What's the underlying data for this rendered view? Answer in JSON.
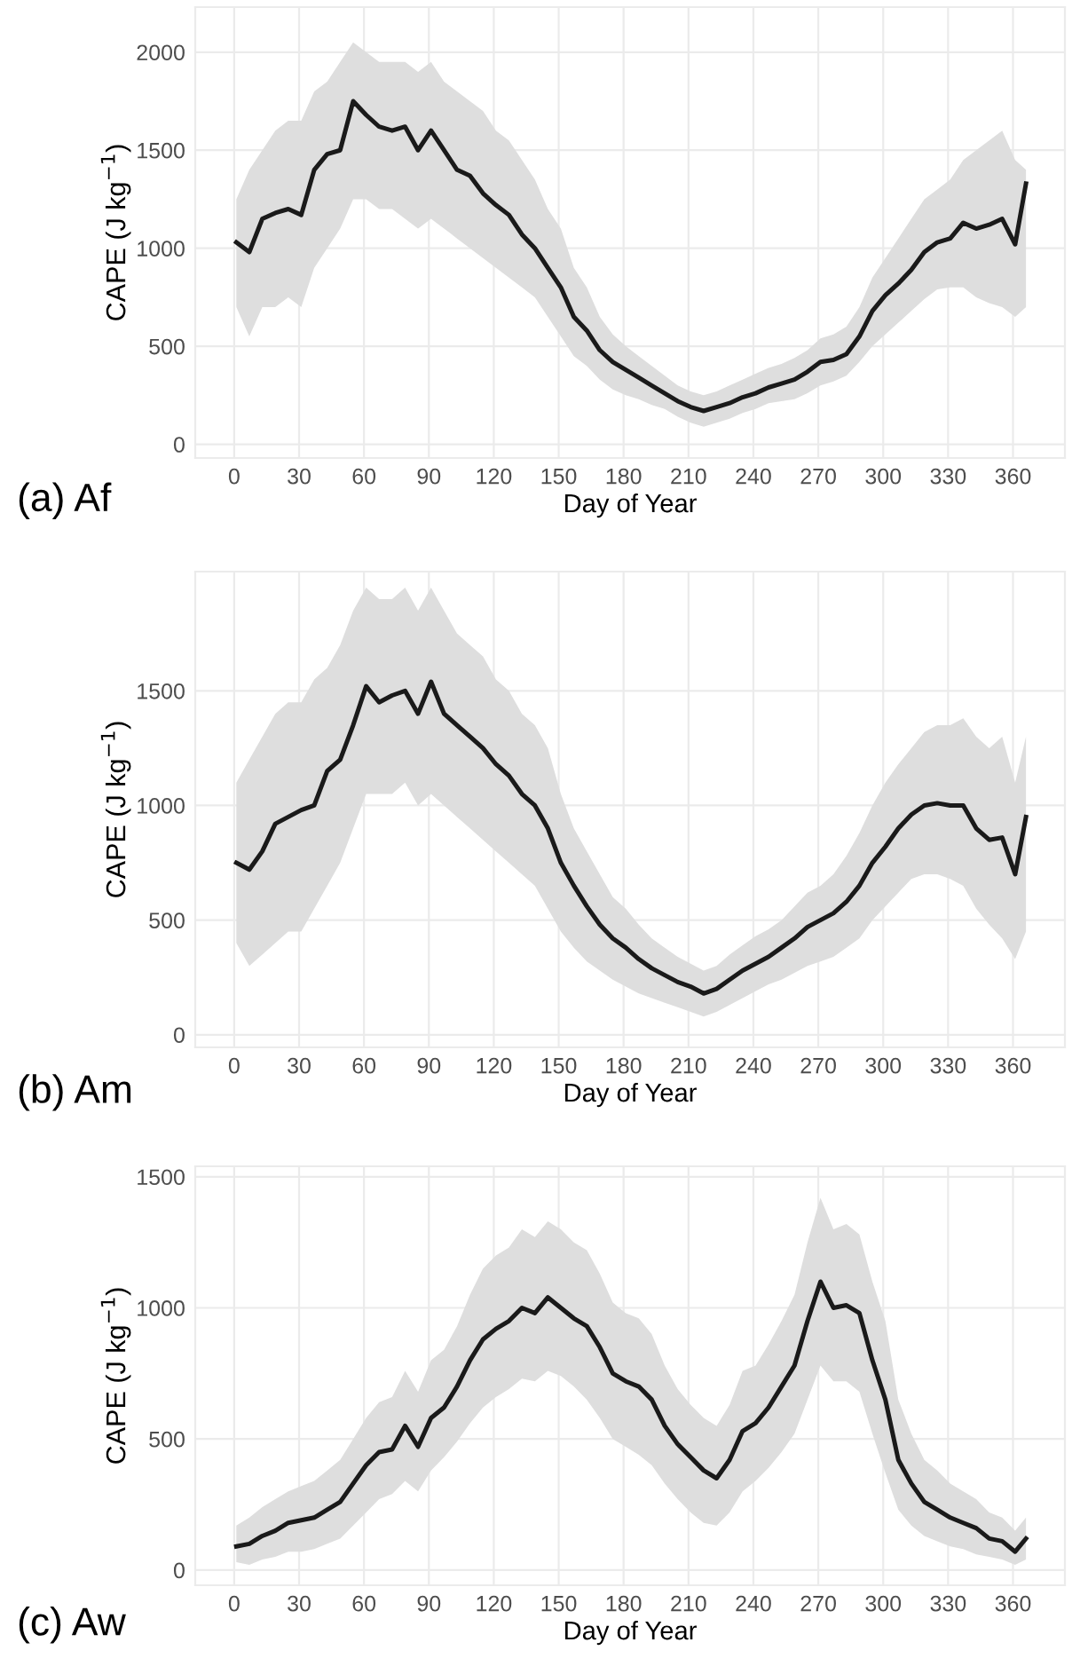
{
  "chart_data": [
    {
      "type": "line",
      "xlabel": "Day of Year",
      "ylabel": "CAPE (J kg$^{−1}$)",
      "annotations": [
        "(a) Af"
      ],
      "xlim": [
        -18,
        384
      ],
      "ylim": [
        -70,
        2230
      ],
      "xticks": [
        0,
        30,
        60,
        90,
        120,
        150,
        180,
        210,
        240,
        270,
        300,
        330,
        360
      ],
      "yticks": [
        0,
        500,
        1000,
        1500,
        2000
      ],
      "grid": true,
      "x": [
        1,
        7,
        13,
        19,
        25,
        31,
        37,
        43,
        49,
        55,
        61,
        67,
        73,
        79,
        85,
        91,
        97,
        103,
        109,
        115,
        121,
        127,
        133,
        139,
        145,
        151,
        157,
        163,
        169,
        175,
        181,
        187,
        193,
        199,
        205,
        211,
        217,
        223,
        229,
        235,
        241,
        247,
        253,
        259,
        265,
        271,
        277,
        283,
        289,
        295,
        301,
        307,
        313,
        319,
        325,
        331,
        337,
        343,
        349,
        355,
        361,
        366
      ],
      "series": [
        {
          "color": "#1a1a1a",
          "values": [
            1030,
            980,
            1150,
            1180,
            1200,
            1170,
            1400,
            1480,
            1500,
            1750,
            1680,
            1620,
            1600,
            1620,
            1500,
            1600,
            1500,
            1400,
            1370,
            1280,
            1220,
            1170,
            1070,
            1000,
            900,
            800,
            650,
            580,
            480,
            420,
            380,
            340,
            300,
            260,
            220,
            190,
            170,
            190,
            210,
            240,
            260,
            290,
            310,
            330,
            370,
            420,
            430,
            460,
            550,
            680,
            760,
            820,
            890,
            980,
            1030,
            1050,
            1130,
            1100,
            1120,
            1150,
            1020,
            1330
          ],
          "lower": [
            700,
            550,
            700,
            700,
            750,
            700,
            900,
            1000,
            1100,
            1250,
            1250,
            1200,
            1200,
            1150,
            1100,
            1150,
            1100,
            1050,
            1000,
            950,
            900,
            850,
            800,
            750,
            650,
            550,
            450,
            400,
            330,
            280,
            250,
            230,
            200,
            180,
            140,
            110,
            90,
            110,
            130,
            160,
            180,
            210,
            220,
            230,
            260,
            300,
            320,
            350,
            420,
            500,
            560,
            620,
            680,
            740,
            790,
            800,
            800,
            750,
            720,
            700,
            650,
            700
          ],
          "upper": [
            1250,
            1400,
            1500,
            1600,
            1650,
            1650,
            1800,
            1850,
            1950,
            2050,
            2000,
            1950,
            1950,
            1950,
            1900,
            1950,
            1850,
            1800,
            1750,
            1700,
            1600,
            1550,
            1450,
            1350,
            1200,
            1100,
            900,
            800,
            650,
            560,
            500,
            450,
            400,
            350,
            300,
            270,
            250,
            270,
            300,
            330,
            360,
            390,
            410,
            440,
            480,
            540,
            560,
            600,
            700,
            850,
            950,
            1050,
            1150,
            1250,
            1300,
            1350,
            1450,
            1500,
            1550,
            1600,
            1450,
            1400
          ]
        }
      ]
    },
    {
      "type": "line",
      "xlabel": "Day of Year",
      "ylabel": "CAPE (J kg$^{−1}$)",
      "annotations": [
        "(b) Am"
      ],
      "xlim": [
        -18,
        384
      ],
      "ylim": [
        -55,
        2020
      ],
      "xticks": [
        0,
        30,
        60,
        90,
        120,
        150,
        180,
        210,
        240,
        270,
        300,
        330,
        360
      ],
      "yticks": [
        0,
        500,
        1000,
        1500
      ],
      "grid": true,
      "x": [
        1,
        7,
        13,
        19,
        25,
        31,
        37,
        43,
        49,
        55,
        61,
        67,
        73,
        79,
        85,
        91,
        97,
        103,
        109,
        115,
        121,
        127,
        133,
        139,
        145,
        151,
        157,
        163,
        169,
        175,
        181,
        187,
        193,
        199,
        205,
        211,
        217,
        223,
        229,
        235,
        241,
        247,
        253,
        259,
        265,
        271,
        277,
        283,
        289,
        295,
        301,
        307,
        313,
        319,
        325,
        331,
        337,
        343,
        349,
        355,
        361,
        366
      ],
      "series": [
        {
          "color": "#1a1a1a",
          "values": [
            750,
            720,
            800,
            920,
            950,
            980,
            1000,
            1150,
            1200,
            1350,
            1520,
            1450,
            1480,
            1500,
            1400,
            1540,
            1400,
            1350,
            1300,
            1250,
            1180,
            1130,
            1050,
            1000,
            900,
            750,
            650,
            560,
            480,
            420,
            380,
            330,
            290,
            260,
            230,
            210,
            180,
            200,
            240,
            280,
            310,
            340,
            380,
            420,
            470,
            500,
            530,
            580,
            650,
            750,
            820,
            900,
            960,
            1000,
            1010,
            1000,
            1000,
            900,
            850,
            860,
            700,
            950
          ],
          "lower": [
            400,
            300,
            350,
            400,
            450,
            450,
            550,
            650,
            750,
            900,
            1050,
            1050,
            1050,
            1100,
            1000,
            1050,
            1000,
            950,
            900,
            850,
            800,
            750,
            700,
            650,
            550,
            450,
            380,
            320,
            280,
            240,
            210,
            180,
            160,
            140,
            120,
            100,
            80,
            100,
            130,
            160,
            190,
            220,
            240,
            270,
            300,
            320,
            340,
            380,
            420,
            500,
            560,
            620,
            680,
            700,
            700,
            680,
            650,
            550,
            480,
            420,
            330,
            450
          ],
          "upper": [
            1100,
            1200,
            1300,
            1400,
            1450,
            1450,
            1550,
            1600,
            1700,
            1850,
            1950,
            1900,
            1900,
            1950,
            1850,
            1950,
            1850,
            1750,
            1700,
            1650,
            1550,
            1500,
            1400,
            1350,
            1250,
            1050,
            900,
            800,
            700,
            600,
            550,
            480,
            420,
            380,
            340,
            310,
            280,
            300,
            350,
            390,
            430,
            460,
            500,
            560,
            620,
            650,
            700,
            780,
            880,
            1000,
            1100,
            1180,
            1250,
            1320,
            1350,
            1350,
            1380,
            1300,
            1250,
            1300,
            1100,
            1300
          ]
        }
      ]
    },
    {
      "type": "line",
      "xlabel": "Day of Year",
      "ylabel": "CAPE (J kg$^{−1}$)",
      "annotations": [
        "(c) Aw"
      ],
      "xlim": [
        -18,
        384
      ],
      "ylim": [
        -58,
        1540
      ],
      "xticks": [
        0,
        30,
        60,
        90,
        120,
        150,
        180,
        210,
        240,
        270,
        300,
        330,
        360
      ],
      "yticks": [
        0,
        500,
        1000,
        1500
      ],
      "grid": true,
      "x": [
        1,
        7,
        13,
        19,
        25,
        31,
        37,
        43,
        49,
        55,
        61,
        67,
        73,
        79,
        85,
        91,
        97,
        103,
        109,
        115,
        121,
        127,
        133,
        139,
        145,
        151,
        157,
        163,
        169,
        175,
        181,
        187,
        193,
        199,
        205,
        211,
        217,
        223,
        229,
        235,
        241,
        247,
        253,
        259,
        265,
        271,
        277,
        283,
        289,
        295,
        301,
        307,
        313,
        319,
        325,
        331,
        337,
        343,
        349,
        355,
        361,
        366
      ],
      "series": [
        {
          "color": "#1a1a1a",
          "values": [
            90,
            100,
            130,
            150,
            180,
            190,
            200,
            230,
            260,
            330,
            400,
            450,
            460,
            550,
            470,
            580,
            620,
            700,
            800,
            880,
            920,
            950,
            1000,
            980,
            1040,
            1000,
            960,
            930,
            850,
            750,
            720,
            700,
            650,
            550,
            480,
            430,
            380,
            350,
            420,
            530,
            560,
            620,
            700,
            780,
            950,
            1100,
            1000,
            1010,
            980,
            800,
            650,
            420,
            330,
            260,
            230,
            200,
            180,
            160,
            120,
            110,
            70,
            120
          ],
          "lower": [
            30,
            20,
            40,
            50,
            70,
            70,
            80,
            100,
            120,
            170,
            220,
            270,
            290,
            340,
            300,
            380,
            430,
            490,
            560,
            620,
            660,
            690,
            730,
            720,
            760,
            740,
            700,
            650,
            580,
            500,
            470,
            440,
            400,
            330,
            270,
            220,
            180,
            170,
            220,
            300,
            340,
            390,
            450,
            520,
            650,
            780,
            720,
            720,
            680,
            520,
            370,
            230,
            170,
            130,
            110,
            90,
            80,
            60,
            50,
            40,
            20,
            40
          ],
          "upper": [
            170,
            200,
            240,
            270,
            300,
            320,
            340,
            380,
            420,
            500,
            580,
            640,
            660,
            760,
            680,
            800,
            840,
            930,
            1050,
            1150,
            1200,
            1230,
            1300,
            1270,
            1330,
            1300,
            1250,
            1220,
            1130,
            1020,
            980,
            960,
            900,
            780,
            690,
            630,
            580,
            550,
            630,
            760,
            780,
            860,
            950,
            1050,
            1250,
            1420,
            1300,
            1320,
            1280,
            1100,
            950,
            650,
            520,
            420,
            380,
            330,
            300,
            270,
            220,
            200,
            150,
            200
          ]
        }
      ]
    }
  ]
}
